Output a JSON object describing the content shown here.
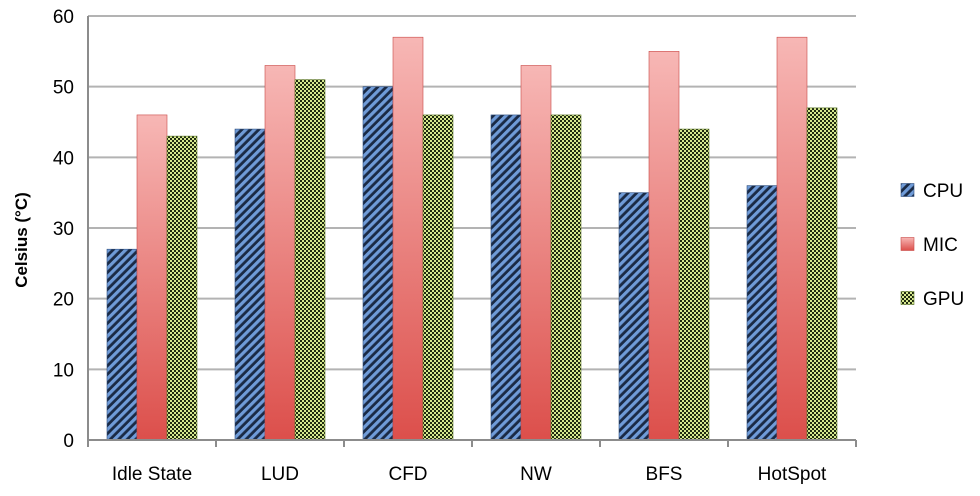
{
  "chart_data": {
    "type": "bar",
    "title": "",
    "xlabel": "",
    "ylabel": "Celsius (°C)",
    "ylim": [
      0,
      60
    ],
    "yticks": [
      0,
      10,
      20,
      30,
      40,
      50,
      60
    ],
    "grid": true,
    "legend_position": "right",
    "categories": [
      "Idle State",
      "LUD",
      "CFD",
      "NW",
      "BFS",
      "HotSpot"
    ],
    "series": [
      {
        "name": "CPU",
        "values": [
          27,
          44,
          50,
          46,
          35,
          36
        ],
        "color": "#4f81bd",
        "pattern": "diagonal-stripes"
      },
      {
        "name": "MIC",
        "values": [
          46,
          53,
          57,
          53,
          55,
          57
        ],
        "color": "#e8605c",
        "pattern": "gradient"
      },
      {
        "name": "GPU",
        "values": [
          43,
          51,
          46,
          46,
          44,
          47
        ],
        "color": "#9bbb59",
        "pattern": "checker"
      }
    ]
  }
}
